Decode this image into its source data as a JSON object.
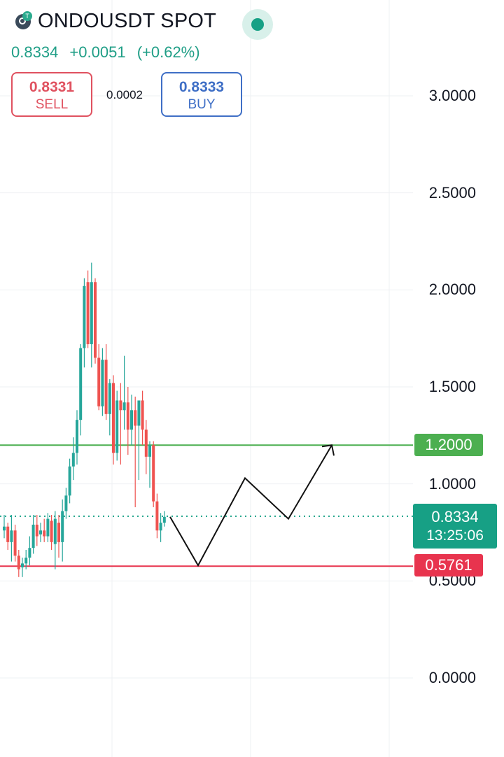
{
  "header": {
    "symbol": "ONDOUSDT SPOT",
    "last_price": "0.8334",
    "change": "+0.0051",
    "change_pct": "(+0.62%)",
    "sell_price": "0.8331",
    "sell_label": "SELL",
    "spread": "0.0002",
    "buy_price": "0.8333",
    "buy_label": "BUY",
    "logo_icon": "token-logo-icon",
    "status_icon": "market-open-dot-icon"
  },
  "colors": {
    "up": "#26a69a",
    "down": "#ef5350",
    "support_line": "#e8344e",
    "resistance_line": "#4caf50",
    "last_price": "#17a085"
  },
  "chart_data": {
    "type": "candlestick",
    "y_axis": {
      "ticks": [
        "3.0000",
        "2.5000",
        "2.0000",
        "1.5000",
        "1.0000",
        "0.5000",
        "0.0000"
      ],
      "ylim": [
        0,
        3
      ]
    },
    "grid": true,
    "candles": [
      [
        0.76,
        0.84,
        0.72,
        0.78
      ],
      [
        0.78,
        0.8,
        0.66,
        0.7
      ],
      [
        0.7,
        0.84,
        0.6,
        0.76
      ],
      [
        0.76,
        0.79,
        0.6,
        0.63
      ],
      [
        0.63,
        0.66,
        0.52,
        0.56
      ],
      [
        0.57,
        0.62,
        0.52,
        0.59
      ],
      [
        0.59,
        0.66,
        0.56,
        0.62
      ],
      [
        0.62,
        0.73,
        0.58,
        0.67
      ],
      [
        0.67,
        0.84,
        0.64,
        0.79
      ],
      [
        0.79,
        0.84,
        0.68,
        0.73
      ],
      [
        0.74,
        0.8,
        0.7,
        0.76
      ],
      [
        0.76,
        0.82,
        0.7,
        0.73
      ],
      [
        0.73,
        0.85,
        0.7,
        0.82
      ],
      [
        0.81,
        0.84,
        0.66,
        0.7
      ],
      [
        0.69,
        0.86,
        0.56,
        0.82
      ],
      [
        0.8,
        0.84,
        0.62,
        0.7
      ],
      [
        0.7,
        0.92,
        0.6,
        0.86
      ],
      [
        0.86,
        0.98,
        0.82,
        0.94
      ],
      [
        0.94,
        1.13,
        0.9,
        1.09
      ],
      [
        1.09,
        1.24,
        1.02,
        1.16
      ],
      [
        1.16,
        1.38,
        1.1,
        1.33
      ],
      [
        1.33,
        1.72,
        1.25,
        1.7
      ],
      [
        1.7,
        2.06,
        1.6,
        2.02
      ],
      [
        2.04,
        2.1,
        1.7,
        1.72
      ],
      [
        1.72,
        2.14,
        1.6,
        2.04
      ],
      [
        2.04,
        2.06,
        1.62,
        1.65
      ],
      [
        1.65,
        1.72,
        1.38,
        1.4
      ],
      [
        1.4,
        1.7,
        1.35,
        1.64
      ],
      [
        1.64,
        1.72,
        1.33,
        1.36
      ],
      [
        1.36,
        1.54,
        1.25,
        1.52
      ],
      [
        1.52,
        1.56,
        1.1,
        1.16
      ],
      [
        1.16,
        1.48,
        1.12,
        1.43
      ],
      [
        1.43,
        1.52,
        1.1,
        1.38
      ],
      [
        1.38,
        1.66,
        1.28,
        1.42
      ],
      [
        1.42,
        1.5,
        1.15,
        1.28
      ],
      [
        1.28,
        1.46,
        1.2,
        1.38
      ],
      [
        1.38,
        1.45,
        0.88,
        1.3
      ],
      [
        1.3,
        1.42,
        1.02,
        1.43
      ],
      [
        1.43,
        1.48,
        1.2,
        1.28
      ],
      [
        1.28,
        1.33,
        1.05,
        1.14
      ],
      [
        1.14,
        1.22,
        0.98,
        1.2
      ],
      [
        1.2,
        1.22,
        0.88,
        0.91
      ],
      [
        0.91,
        0.95,
        0.72,
        0.76
      ],
      [
        0.76,
        0.85,
        0.7,
        0.8
      ],
      [
        0.8,
        0.86,
        0.78,
        0.83
      ]
    ],
    "horizontal_lines": [
      {
        "price": 1.2,
        "label": "1.2000",
        "style": "solid"
      },
      {
        "price": 0.5761,
        "label": "0.5761",
        "style": "solid"
      },
      {
        "price": 0.8334,
        "label": "0.8334",
        "style": "dotted"
      }
    ],
    "last_price_label": "0.8334",
    "countdown": "13:25:06",
    "projection_path": [
      0.83,
      0.58,
      1.03,
      0.82,
      1.2
    ]
  }
}
